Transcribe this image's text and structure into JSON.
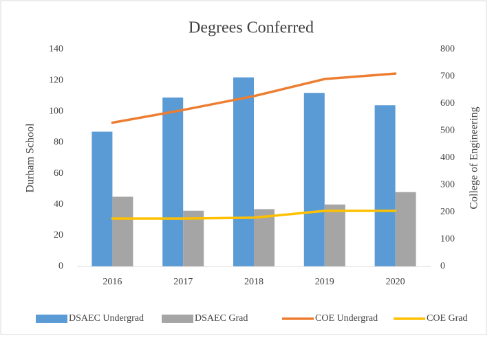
{
  "chart_data": {
    "type": "bar_line",
    "title": "Degrees Conferred",
    "y_label": "Durham School",
    "y2_label": "College of Engineering",
    "categories": [
      "2016",
      "2017",
      "2018",
      "2019",
      "2020"
    ],
    "series": [
      {
        "name": "DSAEC Undergrad",
        "type": "bar",
        "color": "#5b9bd5",
        "values": [
          87,
          109,
          122,
          112,
          104
        ]
      },
      {
        "name": "DSAEC Grad",
        "type": "bar",
        "color": "#a5a5a5",
        "values": [
          45,
          36,
          37,
          40,
          48
        ]
      },
      {
        "name": "COE Undergrad",
        "type": "line",
        "axis": "y2",
        "color": "#ed7d31",
        "values": [
          530,
          577,
          628,
          691,
          711
        ]
      },
      {
        "name": "COE Grad",
        "type": "line",
        "axis": "y2",
        "color": "#ffc000",
        "values": [
          177,
          177,
          180,
          205,
          205
        ]
      }
    ],
    "ylim": [
      0,
      140
    ],
    "yticks": [
      0,
      20,
      40,
      60,
      80,
      100,
      120,
      140
    ],
    "y2lim": [
      0,
      800
    ],
    "y2ticks": [
      0,
      100,
      200,
      300,
      400,
      500,
      600,
      700,
      800
    ],
    "legend": "bottom",
    "grid": false
  }
}
